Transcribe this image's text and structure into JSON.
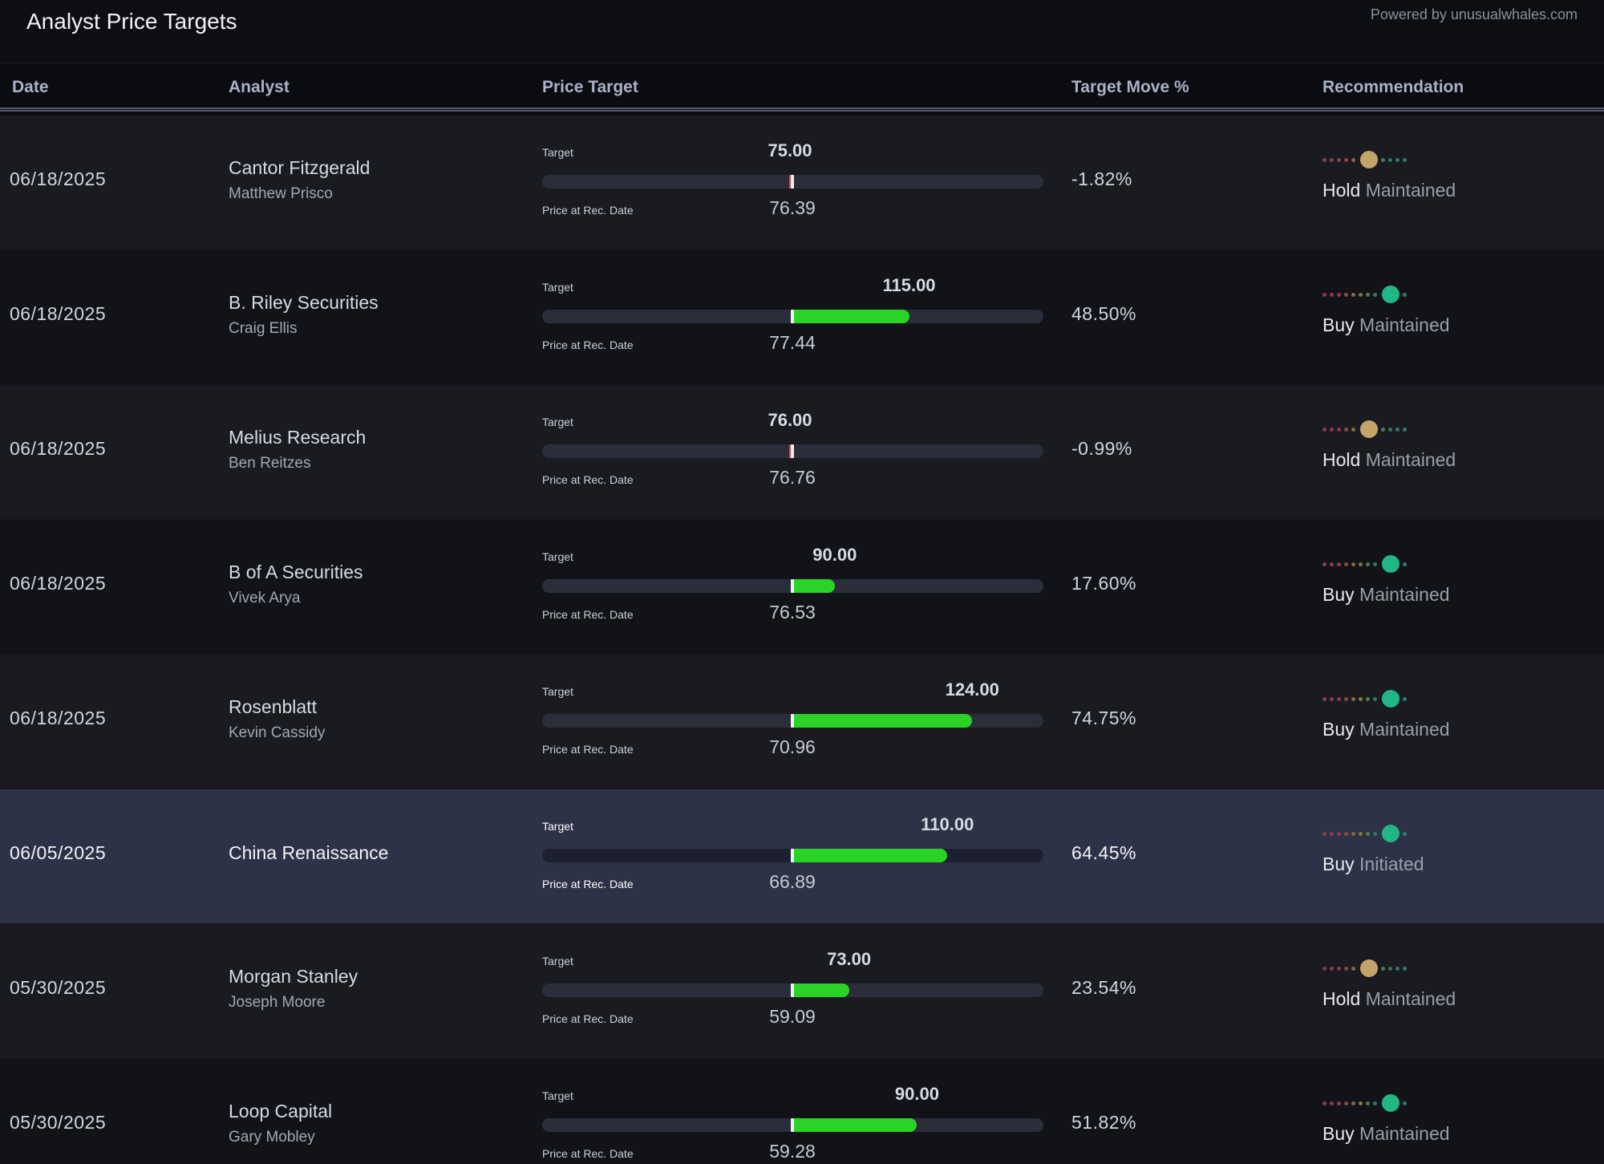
{
  "header": {
    "title": "Analyst Price Targets",
    "powered_by": "Powered by unusualwhales.com"
  },
  "columns": {
    "date": "Date",
    "analyst": "Analyst",
    "price_target": "Price Target",
    "target_move": "Target Move %",
    "recommendation": "Recommendation"
  },
  "labels": {
    "target": "Target",
    "price_at_rec": "Price at Rec. Date"
  },
  "rating_scale_colors": [
    "#8a3b48",
    "#8a3b48",
    "#8a3b48",
    "#8a4a40",
    "#8a6a3a",
    "#7a7a3a",
    "#4f7a4f",
    "#2f7a5f",
    "#2f7a6f",
    "#2f7a6f"
  ],
  "rating_colors": {
    "Hold": "#c4a46b",
    "Buy": "#20b784"
  },
  "rows": [
    {
      "date": "06/18/2025",
      "firm": "Cantor Fitzgerald",
      "analyst": "Matthew Prisco",
      "target": "75.00",
      "price": "76.39",
      "move": "-1.82%",
      "rating": "Hold",
      "action": "Maintained",
      "rating_position": 5
    },
    {
      "date": "06/18/2025",
      "firm": "B. Riley Securities",
      "analyst": "Craig Ellis",
      "target": "115.00",
      "price": "77.44",
      "move": "48.50%",
      "rating": "Buy",
      "action": "Maintained",
      "rating_position": 8
    },
    {
      "date": "06/18/2025",
      "firm": "Melius Research",
      "analyst": "Ben Reitzes",
      "target": "76.00",
      "price": "76.76",
      "move": "-0.99%",
      "rating": "Hold",
      "action": "Maintained",
      "rating_position": 5
    },
    {
      "date": "06/18/2025",
      "firm": "B of A Securities",
      "analyst": "Vivek Arya",
      "target": "90.00",
      "price": "76.53",
      "move": "17.60%",
      "rating": "Buy",
      "action": "Maintained",
      "rating_position": 8
    },
    {
      "date": "06/18/2025",
      "firm": "Rosenblatt",
      "analyst": "Kevin Cassidy",
      "target": "124.00",
      "price": "70.96",
      "move": "74.75%",
      "rating": "Buy",
      "action": "Maintained",
      "rating_position": 8
    },
    {
      "date": "06/05/2025",
      "firm": "China Renaissance",
      "analyst": "",
      "target": "110.00",
      "price": "66.89",
      "move": "64.45%",
      "rating": "Buy",
      "action": "Initiated",
      "rating_position": 8
    },
    {
      "date": "05/30/2025",
      "firm": "Morgan Stanley",
      "analyst": "Joseph Moore",
      "target": "73.00",
      "price": "59.09",
      "move": "23.54%",
      "rating": "Hold",
      "action": "Maintained",
      "rating_position": 5
    },
    {
      "date": "05/30/2025",
      "firm": "Loop Capital",
      "analyst": "Gary Mobley",
      "target": "90.00",
      "price": "59.28",
      "move": "51.82%",
      "rating": "Buy",
      "action": "Maintained",
      "rating_position": 8
    }
  ]
}
